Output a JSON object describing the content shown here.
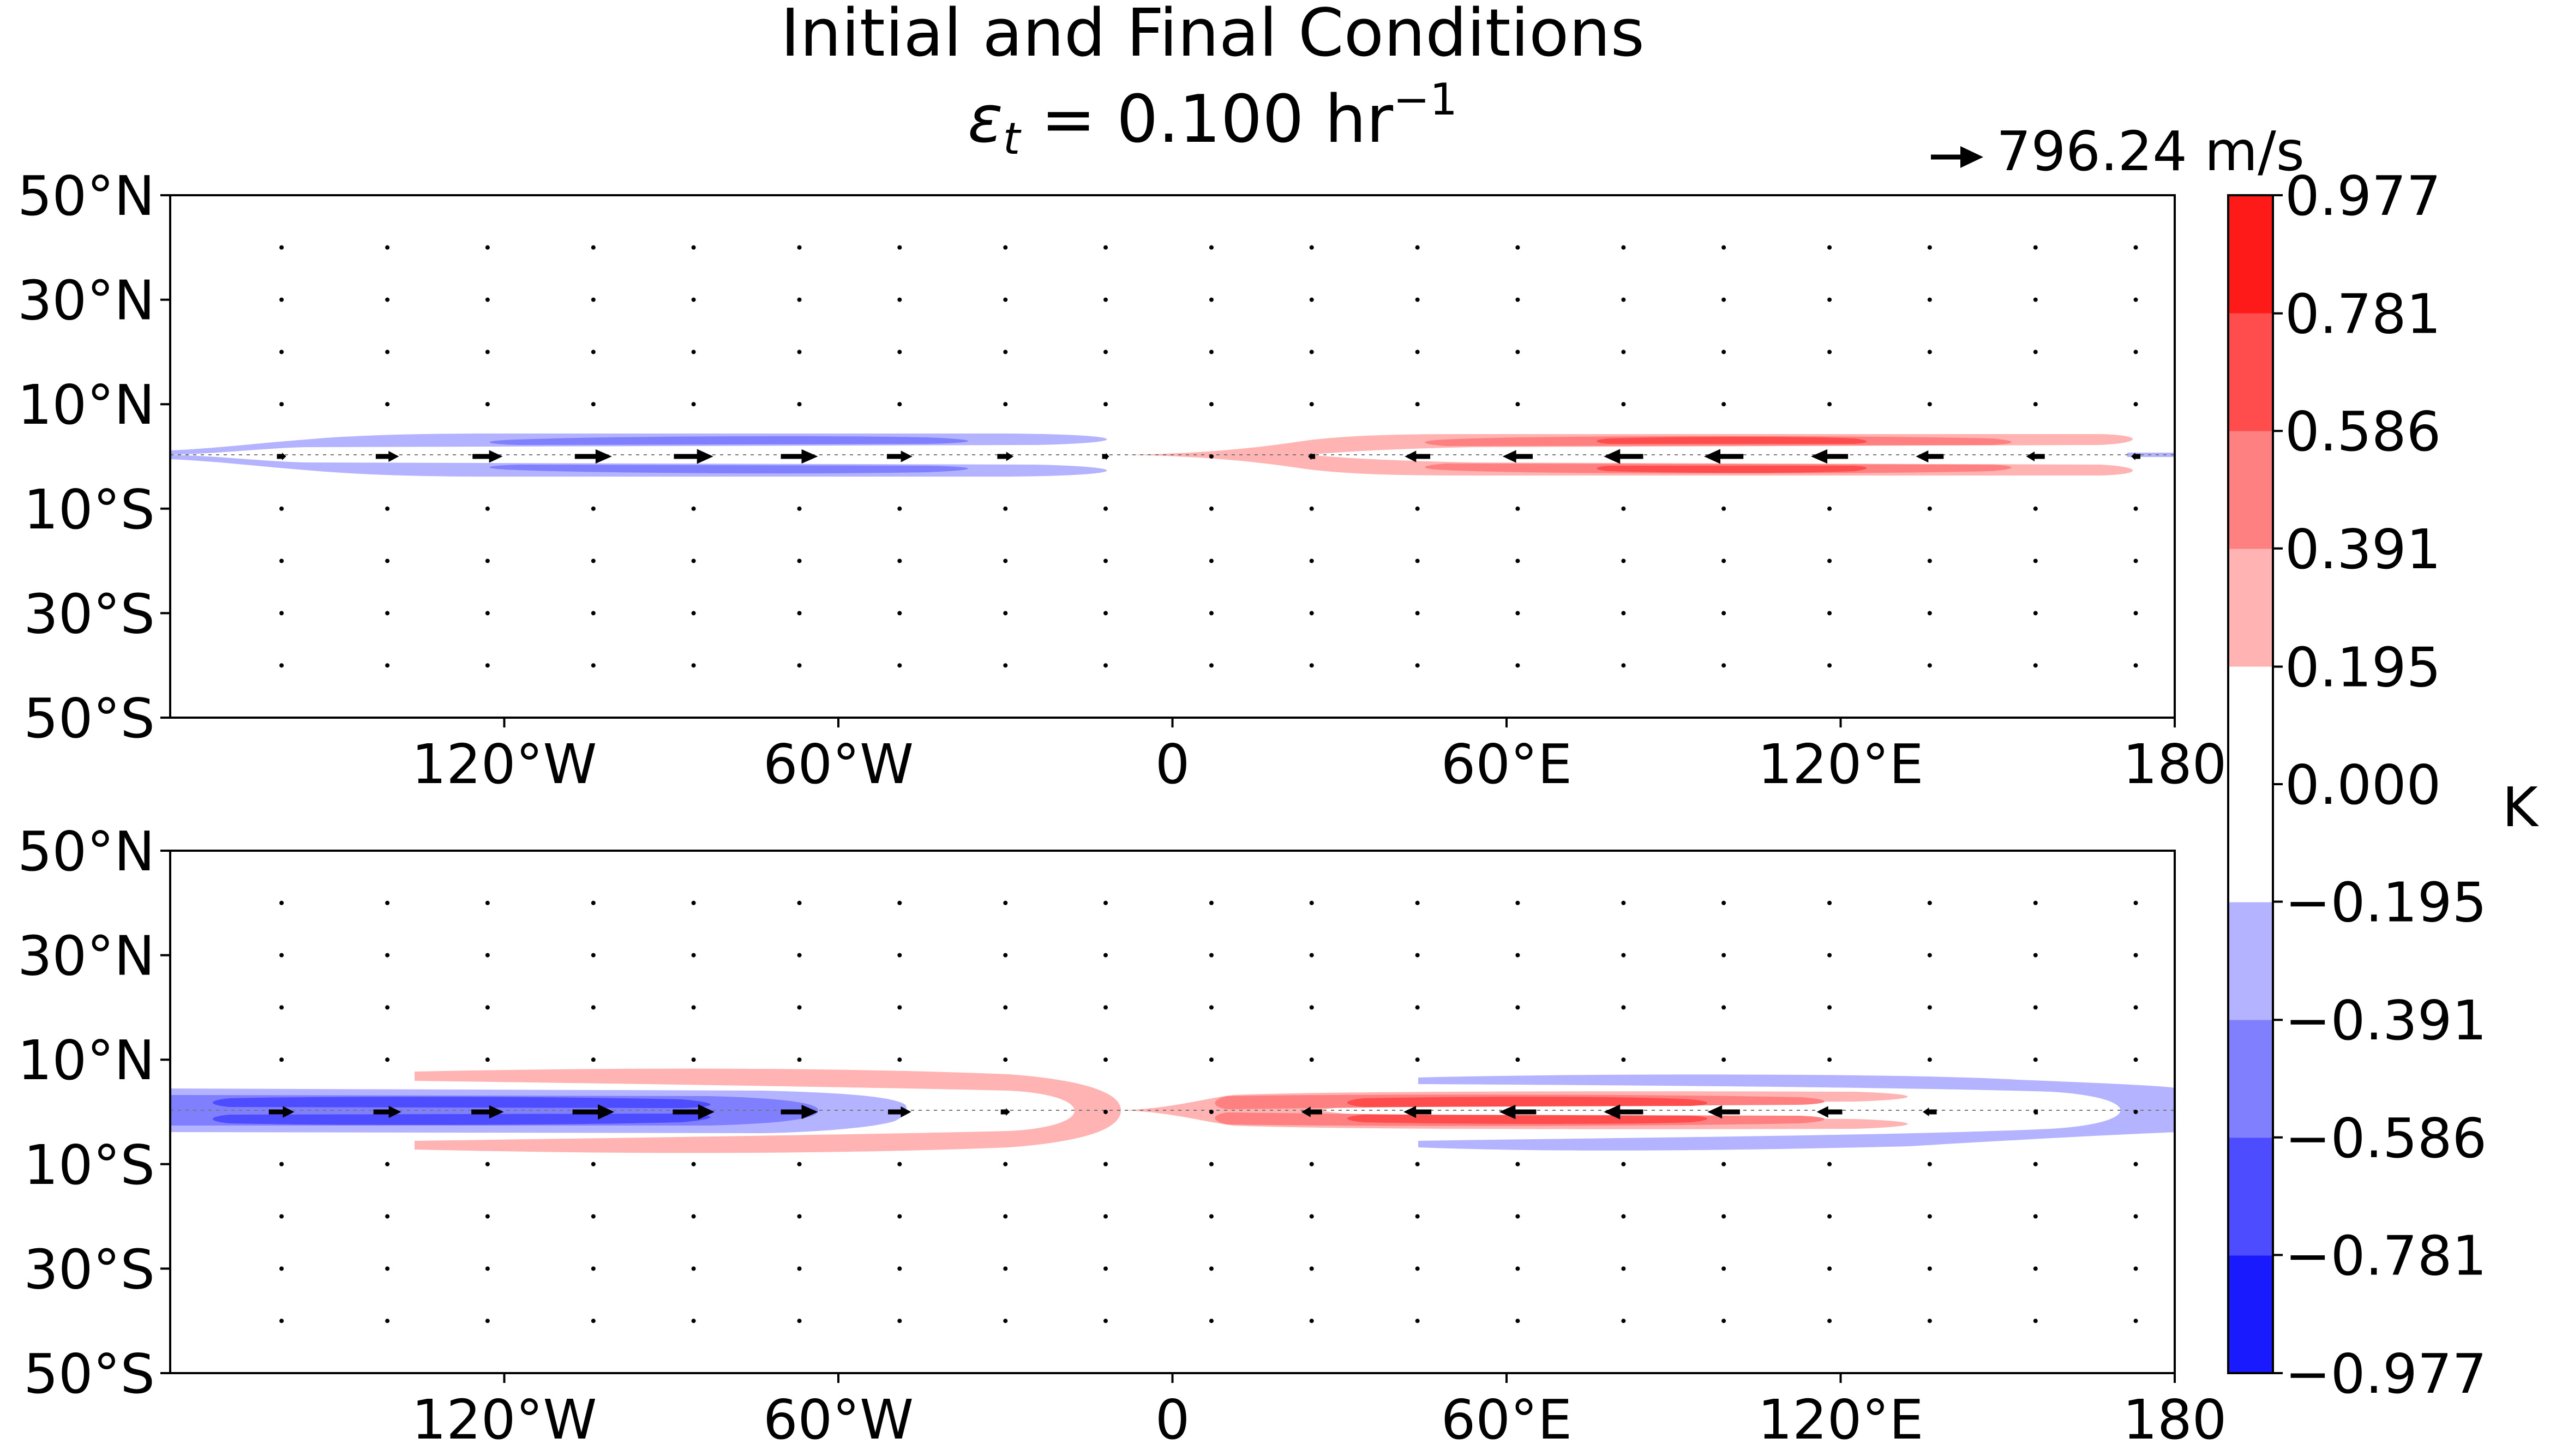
{
  "title": {
    "line1": "Initial and Final Conditions",
    "line2_symbol": "ε",
    "line2_sub": "t",
    "line2_value": " = 0.100 hr",
    "line2_sup": "−1"
  },
  "quiver_key": {
    "label": "796.24 m/s",
    "arrow_icon": "right-arrow-icon"
  },
  "colorbar": {
    "unit": "K",
    "levels": [
      -0.977,
      -0.781,
      -0.586,
      -0.391,
      -0.195,
      0.0,
      0.195,
      0.391,
      0.586,
      0.781,
      0.977
    ],
    "tick_labels": [
      "−0.977",
      "−0.781",
      "−0.586",
      "−0.391",
      "−0.195",
      "0.000",
      "0.195",
      "0.391",
      "0.586",
      "0.781",
      "0.977"
    ],
    "colors": [
      "#1a1aff",
      "#4d4dff",
      "#8080ff",
      "#b3b3ff",
      "#ffffff",
      "#ffffff",
      "#ffb3b3",
      "#ff8080",
      "#ff4d4d",
      "#ff1a1a"
    ]
  },
  "chart_data": [
    {
      "type": "heatmap",
      "panel": "top",
      "title": "",
      "xlabel": "",
      "ylabel": "",
      "xlim": [
        -180,
        180
      ],
      "ylim": [
        -50,
        50
      ],
      "xticks": [
        -120,
        -60,
        0,
        60,
        120,
        180
      ],
      "xtick_labels": [
        "120°W",
        "60°W",
        "0",
        "60°E",
        "120°E",
        "180"
      ],
      "yticks": [
        50,
        30,
        10,
        -10,
        -30,
        -50
      ],
      "ytick_labels": [
        "50°N",
        "30°N",
        "10°N",
        "10°S",
        "30°S",
        "50°S"
      ],
      "temperature_lobes": [
        {
          "lon_range": [
            -180,
            -7
          ],
          "lat_range": [
            -4,
            4
          ],
          "min": -0.5,
          "sign": "negative"
        },
        {
          "lon_range": [
            15,
            173
          ],
          "lat_range": [
            -4,
            4
          ],
          "max": 0.5,
          "sign": "positive"
        }
      ],
      "wind_vectors": [
        {
          "lon": -160,
          "u": 0.2
        },
        {
          "lon": -141,
          "u": 0.5
        },
        {
          "lon": -123,
          "u": 0.65
        },
        {
          "lon": -104,
          "u": 0.8
        },
        {
          "lon": -86,
          "u": 0.85
        },
        {
          "lon": -67,
          "u": 0.8
        },
        {
          "lon": -49,
          "u": 0.55
        },
        {
          "lon": -30,
          "u": 0.35
        },
        {
          "lon": -12,
          "u": 0.15
        },
        {
          "lon": 7,
          "u": 0.0
        },
        {
          "lon": 25,
          "u": -0.15
        },
        {
          "lon": 44,
          "u": -0.55
        },
        {
          "lon": 62,
          "u": -0.65
        },
        {
          "lon": 81,
          "u": -0.85
        },
        {
          "lon": 99,
          "u": -0.85
        },
        {
          "lon": 118,
          "u": -0.8
        },
        {
          "lon": 136,
          "u": -0.6
        },
        {
          "lon": 155,
          "u": -0.4
        },
        {
          "lon": 173,
          "u": -0.2
        }
      ]
    },
    {
      "type": "heatmap",
      "panel": "bottom",
      "title": "",
      "xlabel": "",
      "ylabel": "",
      "xlim": [
        -180,
        180
      ],
      "ylim": [
        -50,
        50
      ],
      "xticks": [
        -120,
        -60,
        0,
        60,
        120,
        180
      ],
      "xtick_labels": [
        "120°W",
        "60°W",
        "0",
        "60°E",
        "120°E",
        "180"
      ],
      "yticks": [
        50,
        30,
        10,
        -10,
        -30,
        -50
      ],
      "ytick_labels": [
        "50°N",
        "30°N",
        "10°N",
        "10°S",
        "30°S",
        "50°S"
      ],
      "temperature_lobes": [
        {
          "lon_range": [
            -180,
            -55
          ],
          "lat_range": [
            -4,
            4
          ],
          "min": -0.6,
          "sign": "negative"
        },
        {
          "lon_range": [
            -135,
            -10
          ],
          "lat_range": [
            -7,
            7
          ],
          "max": 0.3,
          "sign": "positive",
          "shape": "off-equatorial"
        },
        {
          "lon_range": [
            10,
            130
          ],
          "lat_range": [
            -4,
            4
          ],
          "max": 0.65,
          "sign": "positive"
        },
        {
          "lon_range": [
            45,
            180
          ],
          "lat_range": [
            -7,
            7
          ],
          "min": -0.3,
          "sign": "negative",
          "shape": "off-equatorial"
        }
      ],
      "wind_vectors": [
        {
          "lon": -160,
          "u": 0.55
        },
        {
          "lon": -141,
          "u": 0.6
        },
        {
          "lon": -123,
          "u": 0.7
        },
        {
          "lon": -104,
          "u": 0.9
        },
        {
          "lon": -86,
          "u": 0.9
        },
        {
          "lon": -67,
          "u": 0.8
        },
        {
          "lon": -49,
          "u": 0.5
        },
        {
          "lon": -30,
          "u": 0.2
        },
        {
          "lon": -12,
          "u": 0.0
        },
        {
          "lon": 7,
          "u": -0.05
        },
        {
          "lon": 25,
          "u": -0.45
        },
        {
          "lon": 44,
          "u": -0.6
        },
        {
          "lon": 62,
          "u": -0.8
        },
        {
          "lon": 81,
          "u": -0.85
        },
        {
          "lon": 99,
          "u": -0.7
        },
        {
          "lon": 118,
          "u": -0.55
        },
        {
          "lon": 136,
          "u": -0.3
        },
        {
          "lon": 155,
          "u": -0.1
        },
        {
          "lon": 173,
          "u": 0.0
        }
      ]
    }
  ]
}
